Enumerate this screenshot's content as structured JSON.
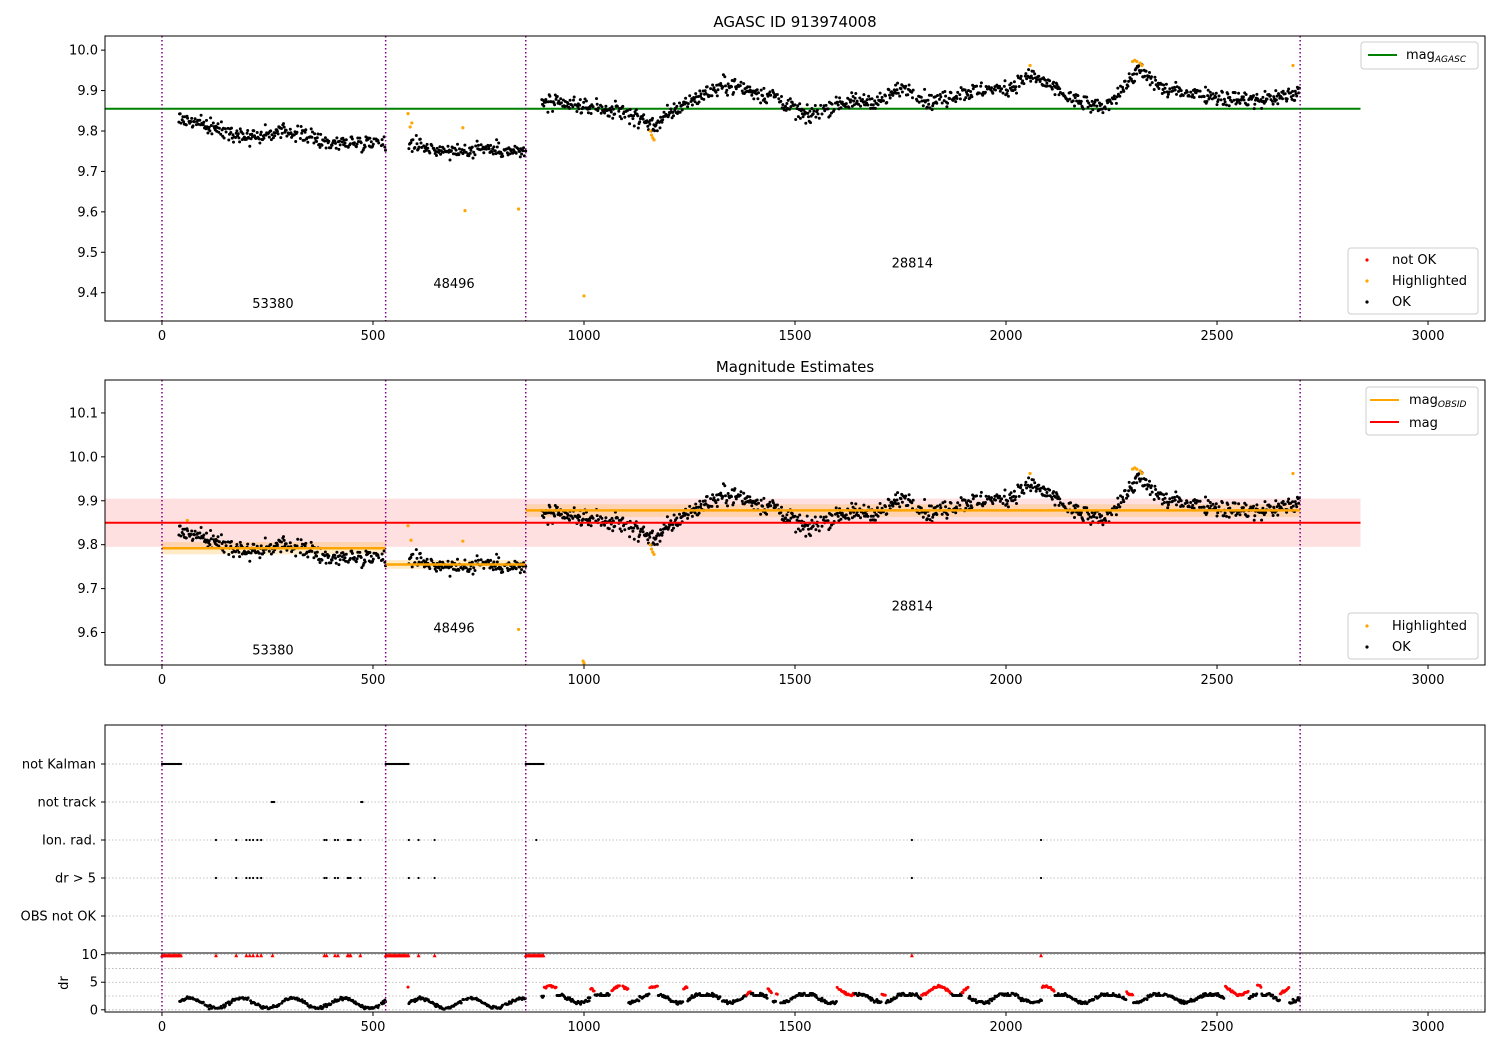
{
  "chart_data": [
    {
      "type": "scatter",
      "title": "AGASC ID 913974008",
      "xlim": [
        -135,
        3135
      ],
      "ylim": [
        9.33,
        10.035
      ],
      "xticks": [
        0,
        500,
        1000,
        1500,
        2000,
        2500,
        3000
      ],
      "yticks": [
        9.4,
        9.5,
        9.6,
        9.7,
        9.8,
        9.9,
        10.0
      ],
      "ytick_labels": [
        "9.4",
        "9.5",
        "9.6",
        "9.7",
        "9.8",
        "9.9",
        "10.0"
      ],
      "obsid_boundaries": [
        0,
        530,
        862,
        2697
      ],
      "obsid_labels": [
        {
          "text": "53380",
          "x": 263,
          "y": 9.362
        },
        {
          "text": "48496",
          "x": 692,
          "y": 9.412
        },
        {
          "text": "28814",
          "x": 1778,
          "y": 9.462
        }
      ],
      "reference_lines": [
        {
          "name": "mag_AGASC",
          "value": 9.855,
          "x_range": [
            -135,
            2840
          ],
          "color": "#008000"
        }
      ],
      "ok_segments": [
        {
          "x0": 40,
          "x1": 530,
          "knots": [
            [
              40,
              9.83
            ],
            [
              120,
              9.81
            ],
            [
              200,
              9.785
            ],
            [
              300,
              9.8
            ],
            [
              400,
              9.77
            ],
            [
              530,
              9.775
            ]
          ],
          "noise": 0.009
        },
        {
          "x0": 585,
          "x1": 862,
          "knots": [
            [
              585,
              9.77
            ],
            [
              650,
              9.755
            ],
            [
              700,
              9.745
            ],
            [
              760,
              9.76
            ],
            [
              862,
              9.745
            ]
          ],
          "noise": 0.009
        },
        {
          "x0": 900,
          "x1": 2697,
          "knots": [
            [
              900,
              9.87
            ],
            [
              1000,
              9.86
            ],
            [
              1100,
              9.845
            ],
            [
              1165,
              9.815
            ],
            [
              1250,
              9.875
            ],
            [
              1335,
              9.915
            ],
            [
              1450,
              9.885
            ],
            [
              1530,
              9.835
            ],
            [
              1600,
              9.87
            ],
            [
              1700,
              9.875
            ],
            [
              1760,
              9.91
            ],
            [
              1820,
              9.87
            ],
            [
              1900,
              9.895
            ],
            [
              2000,
              9.905
            ],
            [
              2060,
              9.935
            ],
            [
              2100,
              9.915
            ],
            [
              2160,
              9.875
            ],
            [
              2230,
              9.855
            ],
            [
              2280,
              9.91
            ],
            [
              2310,
              9.95
            ],
            [
              2380,
              9.9
            ],
            [
              2450,
              9.895
            ],
            [
              2530,
              9.88
            ],
            [
              2600,
              9.875
            ],
            [
              2697,
              9.895
            ]
          ],
          "noise": 0.01
        }
      ],
      "highlighted_points": [
        [
          583,
          9.843
        ],
        [
          588,
          9.81
        ],
        [
          592,
          9.82
        ],
        [
          713,
          9.808
        ],
        [
          718,
          9.603
        ],
        [
          845,
          9.607
        ],
        [
          1000,
          9.392
        ],
        [
          1157,
          9.8
        ],
        [
          1160,
          9.79
        ],
        [
          1163,
          9.783
        ],
        [
          1166,
          9.778
        ],
        [
          2057,
          9.962
        ],
        [
          2300,
          9.972
        ],
        [
          2305,
          9.975
        ],
        [
          2310,
          9.972
        ],
        [
          2318,
          9.968
        ],
        [
          2322,
          9.962
        ],
        [
          2680,
          9.962
        ]
      ],
      "legend_upper": {
        "position": "upper right",
        "entries": [
          {
            "label": "mag",
            "subscript": "AGASC",
            "color": "#008000"
          }
        ]
      },
      "legend_lower": {
        "position": "lower right",
        "entries": [
          {
            "label": "not OK",
            "color": "#ff0000"
          },
          {
            "label": "Highlighted",
            "color": "#ffa500"
          },
          {
            "label": "OK",
            "color": "#000000"
          }
        ]
      }
    },
    {
      "type": "scatter",
      "title": "Magnitude Estimates",
      "xlim": [
        -135,
        3135
      ],
      "ylim": [
        9.526,
        10.175
      ],
      "xticks": [
        0,
        500,
        1000,
        1500,
        2000,
        2500,
        3000
      ],
      "yticks": [
        9.6,
        9.7,
        9.8,
        9.9,
        10.0,
        10.1
      ],
      "ytick_labels": [
        "9.6",
        "9.7",
        "9.8",
        "9.9",
        "10.0",
        "10.1"
      ],
      "obsid_boundaries": [
        0,
        530,
        862,
        2697
      ],
      "obsid_labels": [
        {
          "text": "53380",
          "x": 263,
          "y": 9.55
        },
        {
          "text": "48496",
          "x": 692,
          "y": 9.6
        },
        {
          "text": "28814",
          "x": 1778,
          "y": 9.65
        }
      ],
      "overall_mag": {
        "name": "mag",
        "value": 9.85,
        "lower": 9.795,
        "upper": 9.905,
        "x_range": [
          -135,
          2840
        ],
        "color": "#ff0000"
      },
      "obsid_mags": [
        {
          "name": "mag_OBSID",
          "x_range": [
            0,
            530
          ],
          "value": 9.792,
          "lower": 9.778,
          "upper": 9.806
        },
        {
          "name": "mag_OBSID",
          "x_range": [
            530,
            862
          ],
          "value": 9.755,
          "lower": 9.745,
          "upper": 9.765
        },
        {
          "name": "mag_OBSID",
          "x_range": [
            862,
            2697
          ],
          "value": 9.878,
          "lower": 9.863,
          "upper": 9.892
        }
      ],
      "highlighted_points": [
        [
          60,
          9.855
        ],
        [
          583,
          9.843
        ],
        [
          590,
          9.81
        ],
        [
          713,
          9.808
        ],
        [
          845,
          9.607
        ],
        [
          998,
          9.535
        ],
        [
          1000,
          9.53
        ],
        [
          1157,
          9.8
        ],
        [
          1160,
          9.79
        ],
        [
          1163,
          9.783
        ],
        [
          1166,
          9.778
        ],
        [
          2057,
          9.962
        ],
        [
          2300,
          9.972
        ],
        [
          2305,
          9.975
        ],
        [
          2310,
          9.972
        ],
        [
          2318,
          9.968
        ],
        [
          2322,
          9.962
        ],
        [
          2680,
          9.962
        ]
      ],
      "legend_upper": {
        "position": "upper right",
        "entries": [
          {
            "label": "mag",
            "subscript": "OBSID",
            "color": "#ffa500"
          },
          {
            "label": "mag",
            "subscript": "",
            "color": "#ff0000"
          }
        ]
      },
      "legend_lower": {
        "position": "lower right",
        "entries": [
          {
            "label": "Highlighted",
            "color": "#ffa500"
          },
          {
            "label": "OK",
            "color": "#000000"
          }
        ]
      }
    },
    {
      "type": "scatter",
      "title": "",
      "xlim": [
        -135,
        3135
      ],
      "xticks": [
        0,
        500,
        1000,
        1500,
        2000,
        2500,
        3000
      ],
      "flag_rows": [
        "not Kalman",
        "not track",
        "Ion. rad.",
        "dr > 5",
        "OBS not OK"
      ],
      "flag_points": {
        "not Kalman": [
          [
            0,
            45
          ],
          [
            530,
            585
          ],
          [
            862,
            905
          ]
        ],
        "not track": [
          [
            260,
            267
          ],
          [
            472,
            475
          ]
        ],
        "Ion. rad.": [
          128,
          176,
          200,
          208,
          216,
          226,
          235,
          385,
          390,
          410,
          417,
          440,
          443,
          447,
          470,
          585,
          608,
          646,
          887,
          1777,
          2083
        ],
        "dr > 5": [
          128,
          176,
          200,
          208,
          216,
          226,
          235,
          385,
          390,
          410,
          417,
          440,
          443,
          447,
          470,
          585,
          608,
          646,
          1777,
          2083
        ],
        "OBS not OK": []
      },
      "dr_axis": {
        "ylabel": "dr",
        "ylim": [
          -0.4,
          10.3
        ],
        "yticks": [
          0,
          5,
          10
        ],
        "ytick_labels": [
          "0",
          "5",
          "10"
        ]
      },
      "dr_clipped_red": [
        [
          0,
          45
        ],
        [
          530,
          585
        ],
        [
          862,
          905
        ],
        128,
        176,
        200,
        208,
        216,
        226,
        235,
        262,
        385,
        390,
        410,
        417,
        440,
        443,
        447,
        470,
        608,
        646,
        1777,
        2083
      ],
      "dr_red_ranges": [
        [
          905,
          935
        ],
        [
          1015,
          1025
        ],
        [
          1065,
          1105
        ],
        [
          1155,
          1175
        ],
        [
          1235,
          1245
        ],
        [
          1385,
          1395
        ],
        [
          1435,
          1445
        ],
        [
          1455,
          1465
        ],
        [
          1600,
          1640
        ],
        [
          1705,
          1715
        ],
        [
          1800,
          1870
        ],
        [
          1895,
          1910
        ],
        [
          2085,
          2115
        ],
        [
          2285,
          2300
        ],
        [
          2520,
          2575
        ],
        [
          2595,
          2605
        ],
        [
          2650,
          2670
        ]
      ]
    }
  ]
}
